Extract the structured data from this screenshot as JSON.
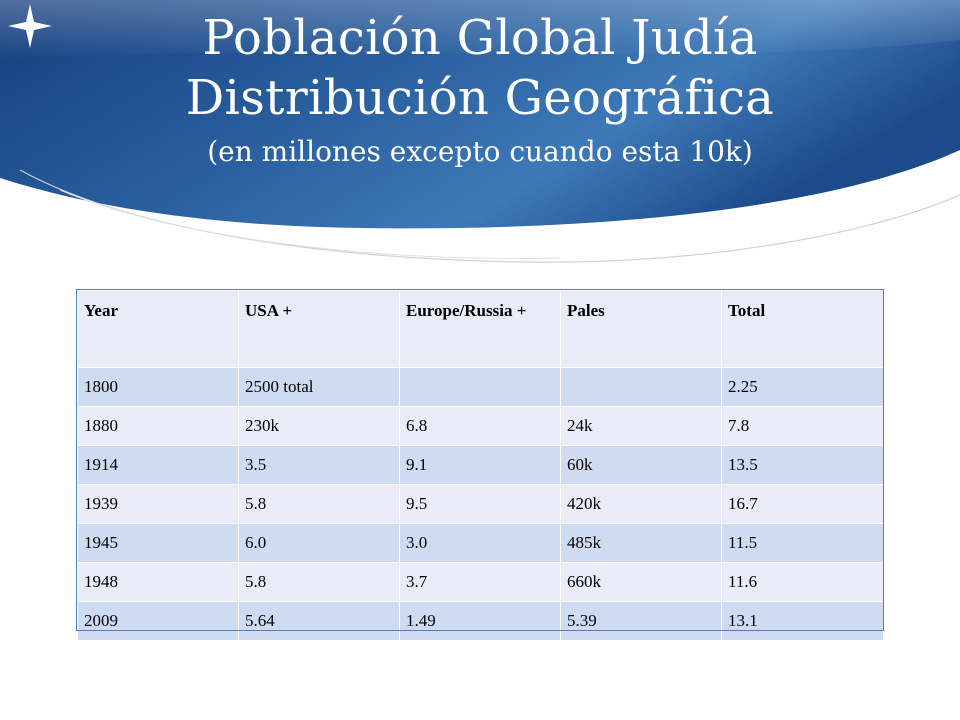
{
  "slide": {
    "title_line1": "Población Global Judía",
    "title_line2": "Distribución Geográfica",
    "subtitle": "(en millones excepto cuando esta 10k)"
  },
  "table": {
    "headers": [
      "Year",
      "USA +",
      "Europe/Russia +",
      "Pales",
      "Total"
    ],
    "rows": [
      [
        "1800",
        "2500 total",
        "",
        "",
        "2.25"
      ],
      [
        "1880",
        "230k",
        "6.8",
        "24k",
        "7.8"
      ],
      [
        "1914",
        "3.5",
        "9.1",
        "60k",
        "13.5"
      ],
      [
        "1939",
        "5.8",
        "9.5",
        "420k",
        "16.7"
      ],
      [
        "1945",
        "6.0",
        "3.0",
        "485k",
        "11.5"
      ],
      [
        "1948",
        "5.8",
        "3.7",
        "660k",
        "11.6"
      ],
      [
        "2009",
        "5.64",
        "1.49",
        "5.39",
        "13.1"
      ]
    ]
  },
  "colors": {
    "header_blue_dark": "#153e7e",
    "header_blue_light": "#3d78b8",
    "row_band_dark": "#cfdbf1",
    "row_band_light": "#e9ebf6"
  },
  "icons": {
    "corner": "four-point-star-icon"
  }
}
